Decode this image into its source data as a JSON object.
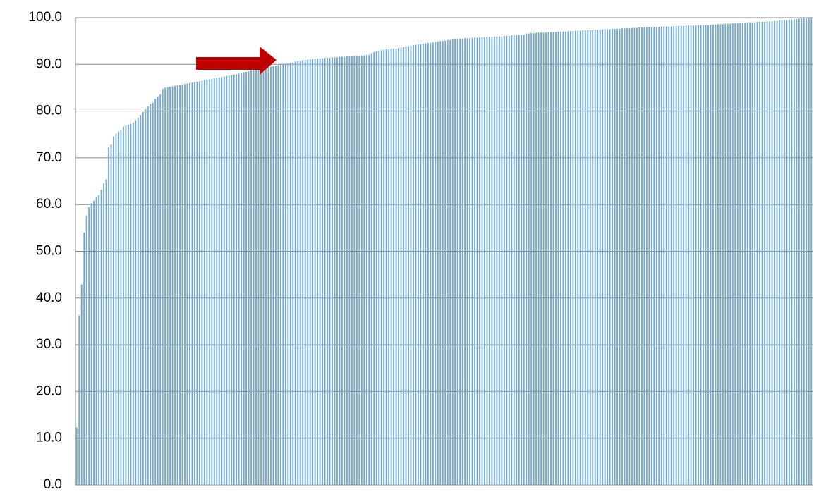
{
  "chart_data": {
    "type": "bar",
    "color": "#74a9cf",
    "grid": true,
    "ylim": [
      0,
      100
    ],
    "yticks": [
      {
        "value": 0,
        "label": "0.0"
      },
      {
        "value": 10,
        "label": "10.0"
      },
      {
        "value": 20,
        "label": "20.0"
      },
      {
        "value": 30,
        "label": "30.0"
      },
      {
        "value": 40,
        "label": "40.0"
      },
      {
        "value": 50,
        "label": "50.0"
      },
      {
        "value": 60,
        "label": "60.0"
      },
      {
        "value": 70,
        "label": "70.0"
      },
      {
        "value": 80,
        "label": "80.0"
      },
      {
        "value": 90,
        "label": "90.0"
      },
      {
        "value": 100,
        "label": "100.0"
      }
    ],
    "values": [
      12.3,
      36.3,
      42.9,
      54.0,
      57.6,
      59.4,
      60.3,
      60.8,
      61.5,
      62.0,
      63.2,
      64.5,
      65.4,
      72.3,
      72.8,
      74.6,
      75.2,
      75.6,
      76.0,
      76.7,
      76.9,
      77.1,
      77.3,
      77.6,
      78.1,
      78.6,
      79.2,
      79.8,
      80.4,
      81.0,
      81.5,
      81.8,
      82.6,
      83.1,
      83.6,
      84.8,
      85.0,
      85.1,
      85.2,
      85.3,
      85.4,
      85.5,
      85.6,
      85.7,
      85.8,
      85.9,
      86.0,
      86.1,
      86.2,
      86.3,
      86.4,
      86.5,
      86.6,
      86.7,
      86.8,
      86.9,
      87.0,
      87.1,
      87.2,
      87.3,
      87.4,
      87.5,
      87.6,
      87.7,
      87.8,
      87.9,
      88.0,
      88.1,
      88.3,
      88.4,
      88.5,
      88.7,
      88.8,
      88.9,
      89.0,
      89.1,
      89.2,
      89.3,
      89.4,
      89.5,
      89.6,
      89.7,
      89.8,
      89.9,
      90.0,
      90.1,
      90.2,
      90.3,
      90.4,
      90.6,
      90.7,
      90.8,
      90.9,
      91.0,
      91.0,
      91.1,
      91.1,
      91.2,
      91.2,
      91.3,
      91.3,
      91.4,
      91.4,
      91.4,
      91.5,
      91.5,
      91.5,
      91.6,
      91.6,
      91.6,
      91.7,
      91.7,
      91.7,
      91.8,
      91.8,
      91.8,
      91.9,
      91.9,
      92.0,
      92.0,
      92.4,
      92.6,
      92.8,
      92.9,
      93.0,
      93.1,
      93.2,
      93.2,
      93.3,
      93.4,
      93.4,
      93.5,
      93.6,
      93.7,
      93.8,
      93.9,
      94.0,
      94.1,
      94.2,
      94.3,
      94.3,
      94.4,
      94.5,
      94.6,
      94.6,
      94.7,
      94.8,
      94.9,
      95.0,
      95.0,
      95.1,
      95.2,
      95.2,
      95.3,
      95.4,
      95.4,
      95.5,
      95.5,
      95.6,
      95.6,
      95.6,
      95.7,
      95.7,
      95.7,
      95.8,
      95.8,
      95.8,
      95.9,
      95.9,
      95.9,
      96.0,
      96.0,
      96.0,
      96.0,
      96.1,
      96.1,
      96.1,
      96.2,
      96.2,
      96.2,
      96.3,
      96.3,
      96.3,
      96.6,
      96.6,
      96.7,
      96.7,
      96.7,
      96.8,
      96.8,
      96.8,
      96.8,
      96.9,
      96.9,
      96.9,
      96.9,
      97.0,
      97.0,
      97.0,
      97.0,
      97.1,
      97.1,
      97.1,
      97.2,
      97.2,
      97.2,
      97.3,
      97.3,
      97.3,
      97.3,
      97.4,
      97.4,
      97.4,
      97.4,
      97.5,
      97.5,
      97.5,
      97.5,
      97.6,
      97.6,
      97.6,
      97.6,
      97.7,
      97.7,
      97.7,
      97.7,
      97.8,
      97.8,
      97.8,
      97.9,
      97.9,
      97.9,
      97.9,
      98.0,
      98.0,
      98.0,
      98.0,
      98.0,
      98.1,
      98.1,
      98.1,
      98.1,
      98.1,
      98.2,
      98.2,
      98.2,
      98.2,
      98.2,
      98.3,
      98.3,
      98.3,
      98.3,
      98.3,
      98.4,
      98.4,
      98.4,
      98.4,
      98.4,
      98.5,
      98.5,
      98.5,
      98.6,
      98.6,
      98.6,
      98.7,
      98.7,
      98.7,
      98.8,
      98.8,
      98.8,
      98.9,
      98.9,
      98.9,
      99.0,
      99.0,
      99.0,
      99.0,
      99.1,
      99.1,
      99.1,
      99.1,
      99.2,
      99.2,
      99.2,
      99.3,
      99.3,
      99.4,
      99.4,
      99.5,
      99.5,
      99.6,
      99.6,
      99.7,
      99.7,
      99.8,
      99.8,
      99.9,
      99.9,
      100.0,
      100.0
    ]
  }
}
